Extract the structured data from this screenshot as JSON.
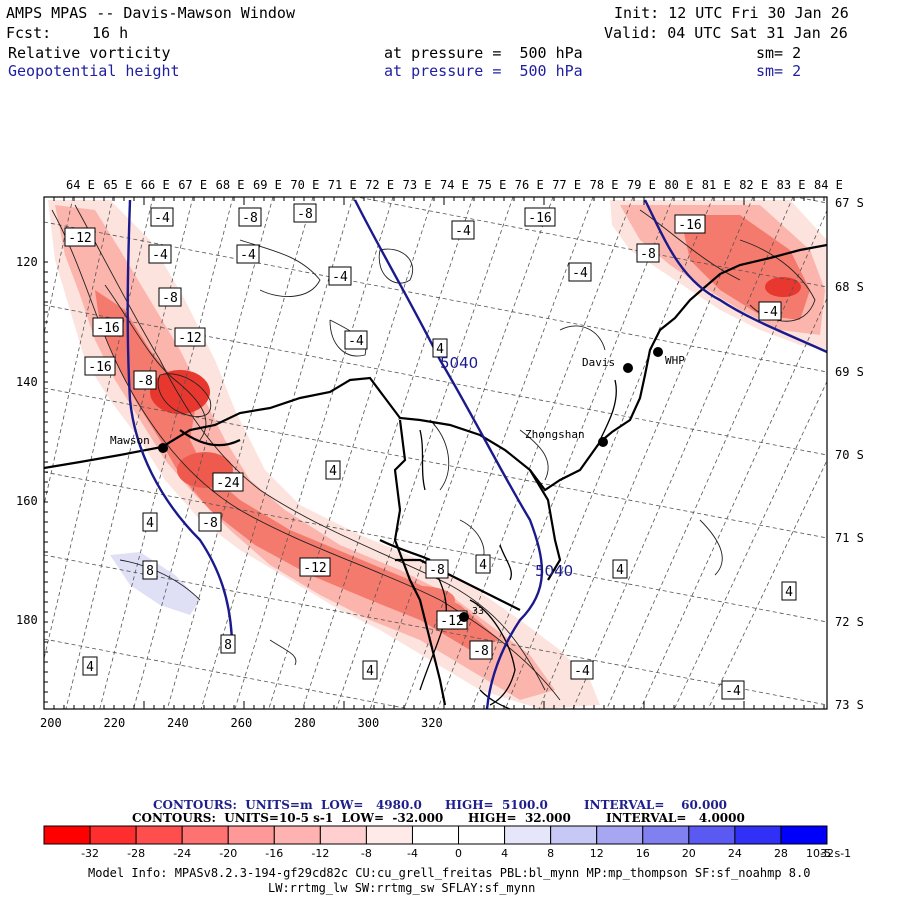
{
  "header": {
    "title": "AMPS MPAS -- Davis-Mawson Window",
    "init": "Init: 12 UTC Fri 30 Jan 26",
    "fcst_label": "Fcst:",
    "fcst_value": "16 h",
    "valid": "Valid: 04 UTC Sat 31 Jan 26",
    "field1": {
      "name": "Relative vorticity",
      "level": "at pressure =  500 hPa",
      "sm": "sm= 2"
    },
    "field2": {
      "name": "Geopotential height",
      "level": "at pressure =  500 hPa",
      "sm": "sm= 2"
    }
  },
  "map": {
    "top_lon_labels": [
      "64 E",
      "65 E",
      "66 E",
      "67 E",
      "68 E",
      "69 E",
      "70 E",
      "71 E",
      "72 E",
      "73 E",
      "74 E",
      "75 E",
      "76 E",
      "77 E",
      "78 E",
      "79 E",
      "80 E",
      "81 E",
      "82 E",
      "83 E",
      "84 E"
    ],
    "right_lat_labels": [
      "67 S",
      "68 S",
      "69 S",
      "70 S",
      "71 S",
      "72 S",
      "73 S"
    ],
    "left_y_labels": [
      "120",
      "140",
      "160",
      "180"
    ],
    "bottom_x_labels": [
      "200",
      "220",
      "240",
      "260",
      "280",
      "300",
      "320"
    ],
    "stations": [
      "Davis",
      "WHP",
      "Mawson",
      "Zhongshan",
      "33"
    ],
    "height_contour_labels": [
      "5040",
      "5040"
    ],
    "vorticity_labels": [
      "-4",
      "-8",
      "-8",
      "-4",
      "-12",
      "-4",
      "-4",
      "-16",
      "-8",
      "-12",
      "-16",
      "-8",
      "-16",
      "-4",
      "-4",
      "-4",
      "-4",
      "4",
      "4",
      "4",
      "-24",
      "-8",
      "-12",
      "-8",
      "4",
      "4",
      "-16",
      "-8",
      "8",
      "8",
      "4",
      "-12",
      "4",
      "4",
      "-4",
      "-4",
      "-8"
    ],
    "colors": {
      "shade_strong": "#e8372f",
      "shade_light": "#fde3de",
      "blue_shade": "#dfe0f6",
      "geopotential": "#1a1a8c"
    }
  },
  "legend": {
    "line1": {
      "label": "CONTOURS:  UNITS=m  LOW=   4980.0",
      "high": "HIGH=  5100.0",
      "interval": "INTERVAL=    60.000"
    },
    "line2": {
      "label": "CONTOURS:  UNITS=10-5 s-1  LOW=  -32.000",
      "high": "HIGH=  32.000",
      "interval": "INTERVAL=   4.0000"
    },
    "tick_labels": [
      "-32",
      "-28",
      "-24",
      "-20",
      "-16",
      "-12",
      "-8",
      "-4",
      "0",
      "4",
      "8",
      "12",
      "16",
      "20",
      "24",
      "28",
      "32"
    ],
    "units": "10-5 s-1",
    "colors": [
      "#ff0000",
      "#ff2e2e",
      "#ff4e4e",
      "#ff7272",
      "#ff9898",
      "#ffb2b2",
      "#ffcfcf",
      "#ffeaea",
      "#ffffff",
      "#ffffff",
      "#e6e6fa",
      "#c8c8f6",
      "#a6a6f2",
      "#8080f0",
      "#5a5af2",
      "#3030f6",
      "#0000fa"
    ]
  },
  "model_info": {
    "line1": "Model Info: MPASv8.2.3-194-gf29cd82c CU:cu_grell_freitas PBL:bl_mynn MP:mp_thompson SF:sf_noahmp 8.0",
    "line2": "LW:rrtmg_lw SW:rrtmg_sw SFLAY:sf_mynn"
  }
}
